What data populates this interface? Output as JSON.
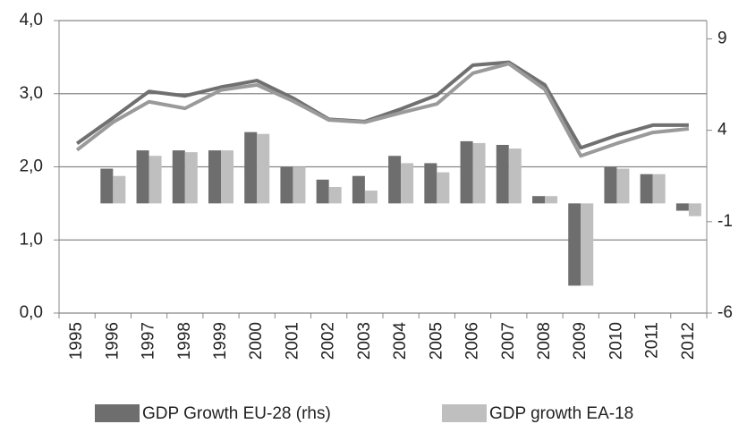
{
  "chart_data": {
    "type": "combo",
    "categories": [
      "1995",
      "1996",
      "1997",
      "1998",
      "1999",
      "2000",
      "2001",
      "2002",
      "2003",
      "2004",
      "2005",
      "2006",
      "2007",
      "2008",
      "2009",
      "2010",
      "2011",
      "2012"
    ],
    "series": [
      {
        "name": "GDP Growth EU-28 (rhs)",
        "type": "bar",
        "axis": "y2",
        "color": "#6e6e6e",
        "values": [
          null,
          1.9,
          2.9,
          2.9,
          2.9,
          3.9,
          2.0,
          1.3,
          1.5,
          2.6,
          2.2,
          3.4,
          3.2,
          0.4,
          -4.5,
          2.0,
          1.6,
          -0.4
        ]
      },
      {
        "name": "GDP growth EA-18",
        "type": "bar",
        "axis": "y2",
        "color": "#bfbfbf",
        "values": [
          null,
          1.5,
          2.6,
          2.8,
          2.9,
          3.8,
          2.0,
          0.9,
          0.7,
          2.2,
          1.7,
          3.3,
          3.0,
          0.4,
          -4.5,
          1.9,
          1.6,
          -0.7
        ]
      },
      {
        "type": "line",
        "color": "#707070",
        "values": [
          2.32,
          2.67,
          3.03,
          2.97,
          3.09,
          3.18,
          2.94,
          2.65,
          2.62,
          2.79,
          2.98,
          3.39,
          3.43,
          3.12,
          2.26,
          2.43,
          2.57,
          2.57
        ]
      },
      {
        "type": "line",
        "color": "#9a9a9a",
        "values": [
          2.23,
          2.61,
          2.89,
          2.8,
          3.05,
          3.12,
          2.9,
          2.64,
          2.61,
          2.74,
          2.86,
          3.28,
          3.41,
          3.06,
          2.15,
          2.32,
          2.47,
          2.52
        ]
      }
    ],
    "ylim": [
      0,
      4
    ],
    "yticks": [
      {
        "value": 0,
        "label": "0,0"
      },
      {
        "value": 1,
        "label": "1,0"
      },
      {
        "value": 2,
        "label": "2,0"
      },
      {
        "value": 3,
        "label": "3,0"
      },
      {
        "value": 4,
        "label": "4,0"
      }
    ],
    "y2lim": [
      -6,
      10
    ],
    "y2ticks": [
      -6,
      -1,
      4,
      9
    ],
    "grid": true
  }
}
